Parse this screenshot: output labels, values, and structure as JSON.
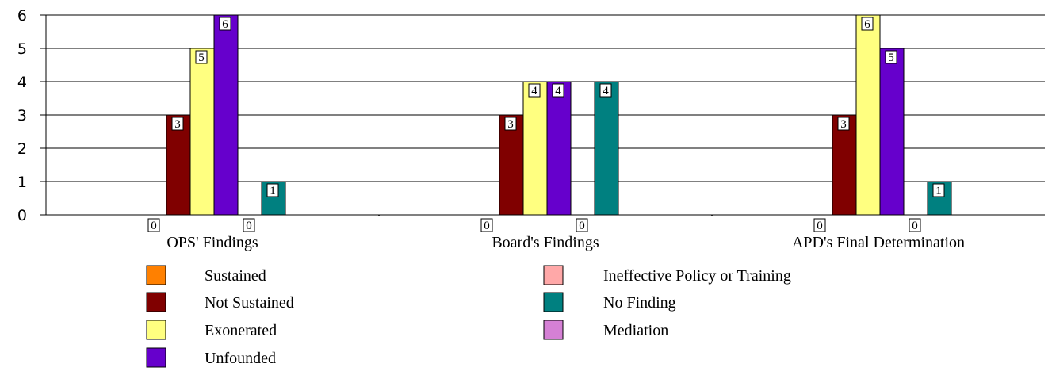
{
  "chart_data": {
    "type": "bar",
    "title": "",
    "xlabel": "",
    "ylabel": "",
    "ylim": [
      0,
      6
    ],
    "yticks": [
      0,
      1,
      2,
      3,
      4,
      5,
      6
    ],
    "grid": true,
    "legend_position": "bottom",
    "categories": [
      "OPS' Findings",
      "Board's Findings",
      "APD's Final Determination"
    ],
    "series": [
      {
        "name": "Sustained",
        "color": "#ff8000",
        "values": [
          0,
          0,
          0
        ]
      },
      {
        "name": "Not Sustained",
        "color": "#800000",
        "values": [
          3,
          3,
          3
        ]
      },
      {
        "name": "Exonerated",
        "color": "#ffff80",
        "values": [
          5,
          4,
          6
        ]
      },
      {
        "name": "Unfounded",
        "color": "#6600cc",
        "values": [
          6,
          4,
          5
        ]
      },
      {
        "name": "Ineffective Policy or Training",
        "color": "#ffa8a8",
        "values": [
          0,
          0,
          0
        ]
      },
      {
        "name": "No Finding",
        "color": "#008080",
        "values": [
          1,
          4,
          1
        ]
      },
      {
        "name": "Mediation",
        "color": "#d580d5",
        "values": [
          null,
          null,
          null
        ]
      }
    ]
  }
}
